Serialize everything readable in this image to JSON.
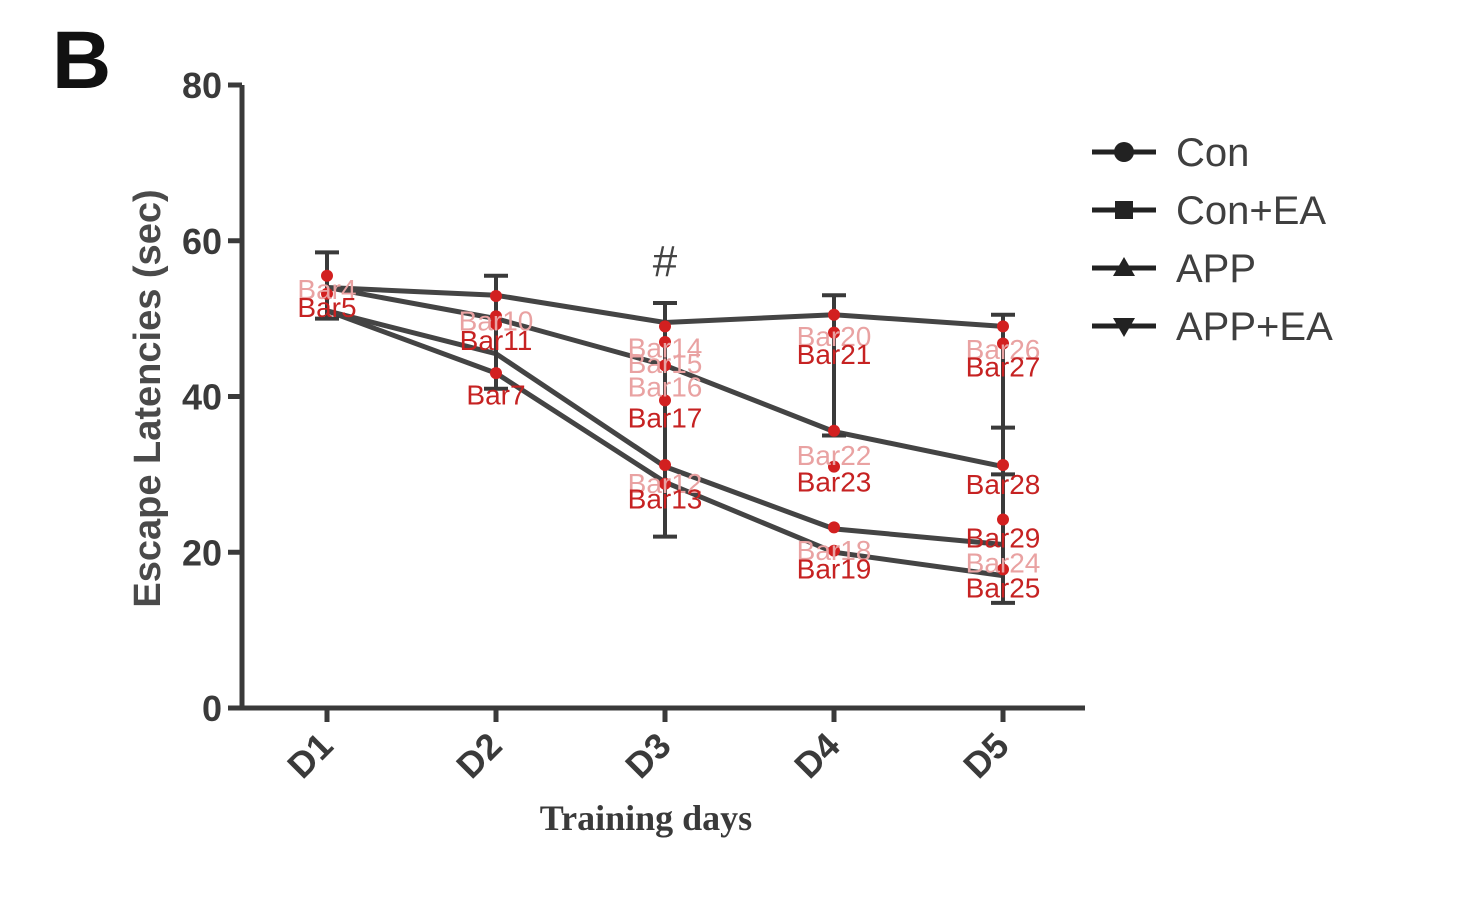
{
  "panel_label": "B",
  "chart_data": {
    "type": "line",
    "title": "",
    "xlabel": "Training days",
    "ylabel": "Escape Latencies (sec)",
    "categories": [
      "D1",
      "D2",
      "D3",
      "D4",
      "D5"
    ],
    "ylim": [
      0,
      80
    ],
    "yticks": [
      0,
      20,
      40,
      60,
      80
    ],
    "ytick_labels": [
      "0",
      "20",
      "40",
      "60",
      "80"
    ],
    "grid": false,
    "legend_position": "top-right",
    "series": [
      {
        "name": "Con",
        "marker": "circle",
        "values": [
          51,
          43,
          29,
          20,
          17
        ]
      },
      {
        "name": "Con+EA",
        "marker": "square",
        "values": [
          51,
          45.5,
          31,
          23,
          21
        ]
      },
      {
        "name": "APP",
        "marker": "triangle-up",
        "values": [
          54,
          53,
          49.5,
          50.5,
          49
        ]
      },
      {
        "name": "APP+EA",
        "marker": "triangle-down",
        "values": [
          54,
          50,
          44,
          35.5,
          31
        ]
      }
    ],
    "data_labels": [
      {
        "text": "Bar4",
        "x": "D1",
        "y": 52.5,
        "faint": true
      },
      {
        "text": "Bar5",
        "x": "D1",
        "y": 50.2,
        "faint": false
      },
      {
        "text": "Bar7",
        "x": "D2",
        "y": 39,
        "faint": false
      },
      {
        "text": "Bar10",
        "x": "D2",
        "y": 48.5,
        "faint": true
      },
      {
        "text": "Bar11",
        "x": "D2",
        "y": 46,
        "faint": false
      },
      {
        "text": "Bar12",
        "x": "D3",
        "y": 27.6,
        "faint": true
      },
      {
        "text": "Bar13",
        "x": "D3",
        "y": 25.6,
        "faint": false
      },
      {
        "text": "Bar14",
        "x": "D3",
        "y": 45,
        "faint": true
      },
      {
        "text": "Bar15",
        "x": "D3",
        "y": 43,
        "faint": true
      },
      {
        "text": "Bar16",
        "x": "D3",
        "y": 40,
        "faint": true
      },
      {
        "text": "Bar17",
        "x": "D3",
        "y": 36,
        "faint": false
      },
      {
        "text": "Bar18",
        "x": "D4",
        "y": 19,
        "faint": true
      },
      {
        "text": "Bar19",
        "x": "D4",
        "y": 16.6,
        "faint": false
      },
      {
        "text": "Bar20",
        "x": "D4",
        "y": 46.5,
        "faint": true
      },
      {
        "text": "Bar21",
        "x": "D4",
        "y": 44.2,
        "faint": false
      },
      {
        "text": "Bar22",
        "x": "D4",
        "y": 31.2,
        "faint": true
      },
      {
        "text": "Bar23",
        "x": "D4",
        "y": 27.8,
        "faint": false
      },
      {
        "text": "Bar24",
        "x": "D5",
        "y": 17.4,
        "faint": true
      },
      {
        "text": "Bar25",
        "x": "D5",
        "y": 14.2,
        "faint": false
      },
      {
        "text": "Bar26",
        "x": "D5",
        "y": 44.8,
        "faint": true
      },
      {
        "text": "Bar27",
        "x": "D5",
        "y": 42.6,
        "faint": false
      },
      {
        "text": "Bar28",
        "x": "D5",
        "y": 27.5,
        "faint": false
      },
      {
        "text": "Bar29",
        "x": "D5",
        "y": 20.6,
        "faint": false
      }
    ],
    "points": [
      {
        "x": "D1",
        "y": 55.5
      },
      {
        "x": "D1",
        "y": 53.2
      },
      {
        "x": "D2",
        "y": 52.9
      },
      {
        "x": "D2",
        "y": 50.3
      },
      {
        "x": "D2",
        "y": 49.3
      },
      {
        "x": "D2",
        "y": 43
      },
      {
        "x": "D3",
        "y": 49
      },
      {
        "x": "D3",
        "y": 47
      },
      {
        "x": "D3",
        "y": 44
      },
      {
        "x": "D3",
        "y": 39.5
      },
      {
        "x": "D3",
        "y": 31.2
      },
      {
        "x": "D3",
        "y": 28.8
      },
      {
        "x": "D4",
        "y": 50.5
      },
      {
        "x": "D4",
        "y": 48.2
      },
      {
        "x": "D4",
        "y": 35.6
      },
      {
        "x": "D4",
        "y": 31
      },
      {
        "x": "D4",
        "y": 23.2
      },
      {
        "x": "D4",
        "y": 20.2
      },
      {
        "x": "D5",
        "y": 49
      },
      {
        "x": "D5",
        "y": 46.8
      },
      {
        "x": "D5",
        "y": 31.2
      },
      {
        "x": "D5",
        "y": 24.2
      },
      {
        "x": "D5",
        "y": 17.8
      }
    ],
    "error_bars": [
      {
        "x": "D1",
        "low": 50,
        "high": 58.5
      },
      {
        "x": "D2",
        "low": 41,
        "high": 55.5
      },
      {
        "x": "D3",
        "low": 22,
        "high": 52
      },
      {
        "x": "D4",
        "low": 35,
        "high": 53
      },
      {
        "x": "D5",
        "low": 30,
        "high": 50.5
      },
      {
        "x": "D5",
        "low": 13.5,
        "high": 36
      }
    ],
    "annotations": [
      {
        "text": "#",
        "x": "D3",
        "y": 57.5
      }
    ]
  }
}
